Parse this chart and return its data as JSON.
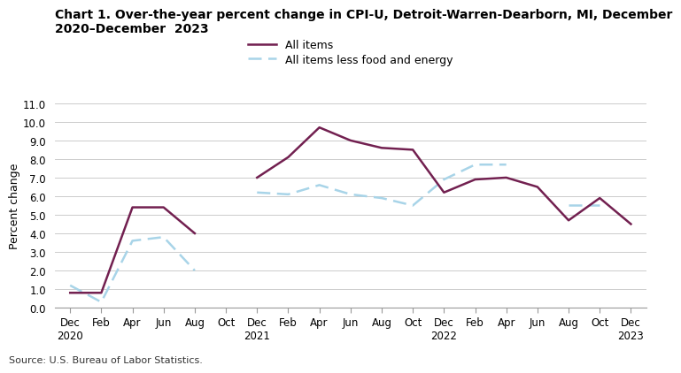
{
  "title_line1": "Chart 1. Over-the-year percent change in CPI-U, Detroit-Warren-Dearborn, MI, December",
  "title_line2": "2020–December  2023",
  "ylabel": "Percent change",
  "source": "Source: U.S. Bureau of Labor Statistics.",
  "ylim": [
    0.0,
    11.0
  ],
  "yticks": [
    0.0,
    1.0,
    2.0,
    3.0,
    4.0,
    5.0,
    6.0,
    7.0,
    8.0,
    9.0,
    10.0,
    11.0
  ],
  "x_labels": [
    "Dec\n2020",
    "Feb",
    "Apr",
    "Jun",
    "Aug",
    "Oct",
    "Dec\n2021",
    "Feb",
    "Apr",
    "Jun",
    "Aug",
    "Oct",
    "Dec\n2022",
    "Feb",
    "Apr",
    "Jun",
    "Aug",
    "Oct",
    "Dec\n2023"
  ],
  "all_items": [
    0.8,
    0.8,
    5.4,
    5.4,
    4.0,
    null,
    7.0,
    8.1,
    9.7,
    9.0,
    8.6,
    8.5,
    6.2,
    6.9,
    7.0,
    6.5,
    4.7,
    5.9,
    4.5
  ],
  "core_items": [
    1.2,
    0.3,
    3.6,
    3.8,
    2.0,
    null,
    6.2,
    6.1,
    6.6,
    6.1,
    5.9,
    5.5,
    6.9,
    7.7,
    7.7,
    null,
    5.5,
    5.5,
    null
  ],
  "all_items_color": "#722050",
  "core_items_color": "#a8d4e8",
  "legend_all": "All items",
  "legend_core": "All items less food and energy"
}
